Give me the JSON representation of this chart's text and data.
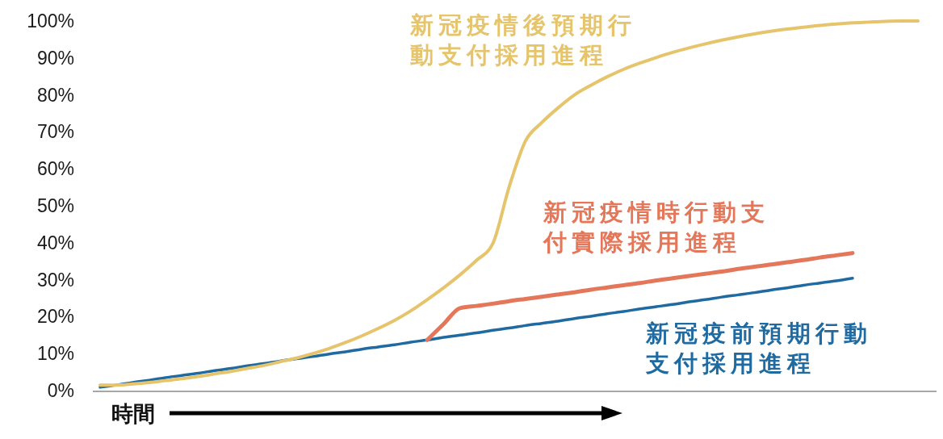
{
  "chart_data": {
    "type": "line",
    "xlabel": "時間",
    "categories": [
      null,
      null,
      null,
      null,
      null,
      null,
      null,
      null,
      null,
      null,
      null,
      null,
      null,
      null,
      null,
      null,
      null,
      null,
      null,
      null,
      null,
      null,
      null,
      null,
      null,
      null,
      null,
      null,
      null,
      null,
      null,
      null,
      null,
      null,
      null,
      null,
      null,
      null,
      null,
      null,
      null,
      null,
      null,
      null,
      null,
      null,
      null,
      null,
      null,
      null,
      null
    ],
    "series": [
      {
        "name": "新冠疫情後預期行動支付採用進程",
        "color": "#e6c46c",
        "values": [
          1.5,
          1.5,
          1.8,
          2.2,
          2.7,
          3.2,
          3.8,
          4.5,
          5.2,
          6.0,
          6.8,
          7.8,
          8.8,
          10.0,
          11.4,
          13.0,
          14.8,
          16.8,
          19.0,
          21.6,
          24.6,
          27.8,
          31.3,
          35.2,
          39.7,
          55.0,
          67.5,
          72.5,
          76.5,
          80.0,
          82.6,
          84.9,
          86.9,
          88.6,
          90.1,
          91.5,
          92.7,
          93.8,
          94.8,
          95.7,
          96.5,
          97.2,
          97.8,
          98.3,
          98.8,
          99.2,
          99.5,
          99.7,
          99.9,
          100,
          100
        ]
      },
      {
        "name": "新冠疫情時行動支付實際採用進程",
        "color": "#e4775a",
        "values": [
          null,
          null,
          null,
          null,
          null,
          null,
          null,
          null,
          null,
          null,
          null,
          null,
          null,
          null,
          null,
          null,
          null,
          null,
          null,
          null,
          13.7,
          18.0,
          22.3,
          22.9,
          23.5,
          24.2,
          24.8,
          25.4,
          26.0,
          26.6,
          27.3,
          27.9,
          28.5,
          29.1,
          29.8,
          30.4,
          31.0,
          31.6,
          32.2,
          32.9,
          33.5,
          34.1,
          34.7,
          35.3,
          36.0,
          36.6,
          37.2,
          null,
          null,
          null,
          null
        ]
      },
      {
        "name": "新冠疫前預期行動支付採用進程",
        "color": "#1f6aa0",
        "values": [
          0.9,
          1.5,
          2.2,
          2.8,
          3.5,
          4.1,
          4.7,
          5.4,
          6.0,
          6.7,
          7.3,
          8.0,
          8.6,
          9.2,
          9.9,
          10.5,
          11.2,
          11.8,
          12.4,
          13.1,
          13.7,
          14.4,
          15.0,
          15.6,
          16.3,
          16.9,
          17.6,
          18.2,
          18.8,
          19.5,
          20.1,
          20.8,
          21.4,
          22.1,
          22.7,
          23.3,
          24.0,
          24.6,
          25.3,
          25.9,
          26.5,
          27.2,
          27.8,
          28.5,
          29.1,
          29.7,
          30.4,
          null,
          null,
          null,
          null
        ]
      }
    ],
    "ylim": [
      0,
      100
    ],
    "yticks": [
      {
        "value": 0,
        "label": "0%"
      },
      {
        "value": 10,
        "label": "10%"
      },
      {
        "value": 20,
        "label": "20%"
      },
      {
        "value": 30,
        "label": "30%"
      },
      {
        "value": 40,
        "label": "40%"
      },
      {
        "value": 50,
        "label": "50%"
      },
      {
        "value": 60,
        "label": "60%"
      },
      {
        "value": 70,
        "label": "70%"
      },
      {
        "value": 80,
        "label": "80%"
      },
      {
        "value": 90,
        "label": "90%"
      },
      {
        "value": 100,
        "label": "100%"
      }
    ],
    "tick_labels": "y"
  }
}
